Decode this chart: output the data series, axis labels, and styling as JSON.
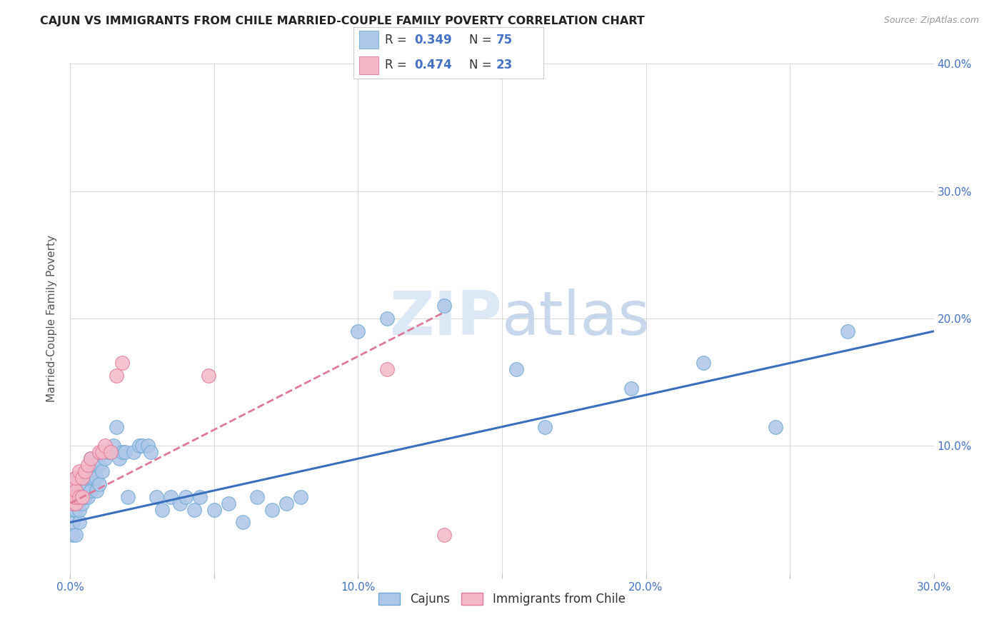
{
  "title": "CAJUN VS IMMIGRANTS FROM CHILE MARRIED-COUPLE FAMILY POVERTY CORRELATION CHART",
  "source": "Source: ZipAtlas.com",
  "ylabel": "Married-Couple Family Poverty",
  "xlim": [
    0.0,
    0.3
  ],
  "ylim": [
    0.0,
    0.4
  ],
  "cajun_R": 0.349,
  "cajun_N": 75,
  "chile_R": 0.474,
  "chile_N": 23,
  "cajun_color": "#aec6e8",
  "cajun_edge": "#6aaad4",
  "chile_color": "#f4b8c8",
  "chile_edge": "#e07898",
  "cajun_line_color": "#3a6fbd",
  "chile_line_color": "#e07898",
  "background_color": "#ffffff",
  "grid_color": "#d8d8d8",
  "watermark_color": "#dce8f5",
  "cajun_x": [
    0.001,
    0.001,
    0.001,
    0.001,
    0.001,
    0.001,
    0.001,
    0.002,
    0.002,
    0.002,
    0.002,
    0.002,
    0.002,
    0.003,
    0.003,
    0.003,
    0.003,
    0.003,
    0.004,
    0.004,
    0.004,
    0.004,
    0.005,
    0.005,
    0.005,
    0.006,
    0.006,
    0.006,
    0.007,
    0.007,
    0.007,
    0.008,
    0.008,
    0.009,
    0.009,
    0.01,
    0.01,
    0.011,
    0.012,
    0.013,
    0.014,
    0.015,
    0.016,
    0.017,
    0.018,
    0.019,
    0.02,
    0.022,
    0.024,
    0.025,
    0.027,
    0.028,
    0.03,
    0.032,
    0.035,
    0.038,
    0.04,
    0.043,
    0.045,
    0.05,
    0.055,
    0.06,
    0.065,
    0.07,
    0.075,
    0.08,
    0.1,
    0.11,
    0.13,
    0.155,
    0.165,
    0.195,
    0.22,
    0.245,
    0.27
  ],
  "cajun_y": [
    0.03,
    0.04,
    0.05,
    0.055,
    0.06,
    0.065,
    0.07,
    0.03,
    0.05,
    0.06,
    0.065,
    0.07,
    0.075,
    0.04,
    0.05,
    0.06,
    0.065,
    0.07,
    0.055,
    0.06,
    0.065,
    0.075,
    0.06,
    0.065,
    0.075,
    0.06,
    0.07,
    0.08,
    0.065,
    0.075,
    0.09,
    0.075,
    0.085,
    0.065,
    0.075,
    0.07,
    0.085,
    0.08,
    0.09,
    0.095,
    0.095,
    0.1,
    0.115,
    0.09,
    0.095,
    0.095,
    0.06,
    0.095,
    0.1,
    0.1,
    0.1,
    0.095,
    0.06,
    0.05,
    0.06,
    0.055,
    0.06,
    0.05,
    0.06,
    0.05,
    0.055,
    0.04,
    0.06,
    0.05,
    0.055,
    0.06,
    0.19,
    0.2,
    0.21,
    0.16,
    0.115,
    0.145,
    0.165,
    0.115,
    0.19
  ],
  "chile_x": [
    0.001,
    0.001,
    0.001,
    0.002,
    0.002,
    0.002,
    0.002,
    0.003,
    0.003,
    0.004,
    0.004,
    0.005,
    0.006,
    0.007,
    0.01,
    0.011,
    0.012,
    0.014,
    0.016,
    0.018,
    0.048,
    0.11,
    0.13
  ],
  "chile_y": [
    0.055,
    0.06,
    0.07,
    0.055,
    0.06,
    0.065,
    0.075,
    0.06,
    0.08,
    0.06,
    0.075,
    0.08,
    0.085,
    0.09,
    0.095,
    0.095,
    0.1,
    0.095,
    0.155,
    0.165,
    0.155,
    0.16,
    0.03
  ],
  "cajun_line_x": [
    0.0,
    0.3
  ],
  "cajun_line_y": [
    0.04,
    0.19
  ],
  "chile_line_x": [
    0.0,
    0.13
  ],
  "chile_line_y": [
    0.055,
    0.205
  ]
}
